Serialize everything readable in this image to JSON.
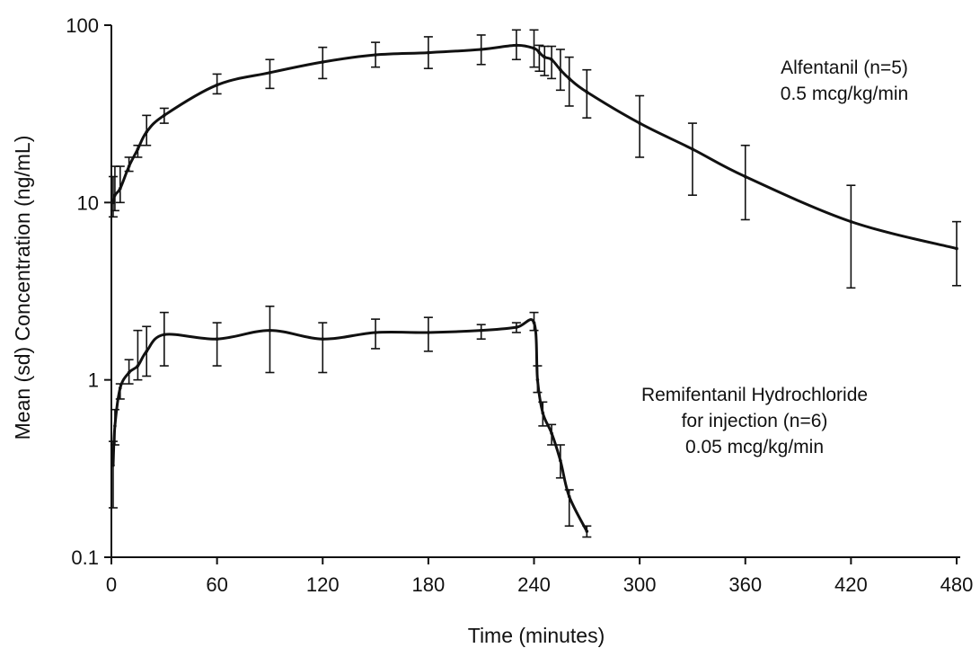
{
  "chart_data": {
    "type": "line",
    "xlabel": "Time (minutes)",
    "ylabel": "Mean (sd) Concentration (ng/mL)",
    "y_scale": "log",
    "xlim": [
      0,
      480
    ],
    "ylim": [
      0.1,
      100
    ],
    "x_ticks": [
      0,
      60,
      120,
      180,
      240,
      300,
      360,
      420,
      480
    ],
    "x_tick_labels": [
      "0",
      "60",
      "120",
      "180",
      "240",
      "300",
      "360",
      "420",
      "480"
    ],
    "y_ticks": [
      0.1,
      1,
      10,
      100
    ],
    "y_tick_labels": [
      "0.1",
      "1",
      "10",
      "100"
    ],
    "grid": false,
    "line_color": "#111111",
    "series": [
      {
        "label_lines": [
          "Alfentanil (n=5)",
          "0.5 mcg/kg/min"
        ],
        "points": [
          {
            "x": 1,
            "y": 10,
            "lo": 8.3,
            "hi": 14
          },
          {
            "x": 2,
            "y": 11,
            "lo": 9,
            "hi": 16
          },
          {
            "x": 5,
            "y": 12,
            "lo": 10,
            "hi": 16
          },
          {
            "x": 10,
            "y": 16,
            "lo": 15,
            "hi": 18
          },
          {
            "x": 15,
            "y": 20,
            "lo": 18,
            "hi": 21
          },
          {
            "x": 20,
            "y": 25,
            "lo": 21,
            "hi": 31
          },
          {
            "x": 30,
            "y": 31,
            "lo": 28,
            "hi": 34
          },
          {
            "x": 60,
            "y": 46,
            "lo": 41,
            "hi": 53
          },
          {
            "x": 90,
            "y": 54,
            "lo": 44,
            "hi": 64
          },
          {
            "x": 120,
            "y": 62,
            "lo": 50,
            "hi": 75
          },
          {
            "x": 150,
            "y": 68,
            "lo": 58,
            "hi": 80
          },
          {
            "x": 180,
            "y": 70,
            "lo": 57,
            "hi": 86
          },
          {
            "x": 210,
            "y": 73,
            "lo": 60,
            "hi": 88
          },
          {
            "x": 230,
            "y": 77,
            "lo": 64,
            "hi": 94
          },
          {
            "x": 240,
            "y": 74,
            "lo": 58,
            "hi": 94
          },
          {
            "x": 243,
            "y": 70,
            "lo": 55,
            "hi": 77
          },
          {
            "x": 246,
            "y": 66,
            "lo": 52,
            "hi": 76
          },
          {
            "x": 250,
            "y": 64,
            "lo": 50,
            "hi": 76
          },
          {
            "x": 255,
            "y": 56,
            "lo": 43,
            "hi": 73
          },
          {
            "x": 260,
            "y": 50,
            "lo": 35,
            "hi": 66
          },
          {
            "x": 270,
            "y": 42,
            "lo": 30,
            "hi": 56
          },
          {
            "x": 300,
            "y": 28,
            "lo": 18,
            "hi": 40
          },
          {
            "x": 330,
            "y": 20,
            "lo": 11,
            "hi": 28
          },
          {
            "x": 360,
            "y": 14,
            "lo": 8,
            "hi": 21
          },
          {
            "x": 420,
            "y": 7.8,
            "lo": 3.3,
            "hi": 12.5
          },
          {
            "x": 480,
            "y": 5.5,
            "lo": 3.4,
            "hi": 7.8
          }
        ]
      },
      {
        "label_lines": [
          "Remifentanil Hydrochloride",
          "for injection (n=6)",
          "0.05 mcg/kg/min"
        ],
        "points": [
          {
            "x": 1,
            "y": 0.33,
            "lo": 0.19,
            "hi": 0.45
          },
          {
            "x": 2,
            "y": 0.55,
            "lo": 0.43,
            "hi": 0.68
          },
          {
            "x": 5,
            "y": 0.9,
            "lo": 0.78,
            "hi": 0.95
          },
          {
            "x": 10,
            "y": 1.1,
            "lo": 0.95,
            "hi": 1.3
          },
          {
            "x": 15,
            "y": 1.2,
            "lo": 1.0,
            "hi": 1.9
          },
          {
            "x": 20,
            "y": 1.45,
            "lo": 1.05,
            "hi": 2.0
          },
          {
            "x": 30,
            "y": 1.8,
            "lo": 1.2,
            "hi": 2.4
          },
          {
            "x": 60,
            "y": 1.7,
            "lo": 1.2,
            "hi": 2.1
          },
          {
            "x": 90,
            "y": 1.9,
            "lo": 1.1,
            "hi": 2.6
          },
          {
            "x": 120,
            "y": 1.7,
            "lo": 1.1,
            "hi": 2.1
          },
          {
            "x": 150,
            "y": 1.85,
            "lo": 1.5,
            "hi": 2.2
          },
          {
            "x": 180,
            "y": 1.85,
            "lo": 1.45,
            "hi": 2.25
          },
          {
            "x": 210,
            "y": 1.9,
            "lo": 1.7,
            "hi": 2.05
          },
          {
            "x": 230,
            "y": 1.98,
            "lo": 1.85,
            "hi": 2.1
          },
          {
            "x": 240,
            "y": 2.1,
            "lo": 1.9,
            "hi": 2.4
          },
          {
            "x": 242,
            "y": 1.0,
            "lo": 0.85,
            "hi": 1.2
          },
          {
            "x": 245,
            "y": 0.65,
            "lo": 0.55,
            "hi": 0.75
          },
          {
            "x": 250,
            "y": 0.5,
            "lo": 0.43,
            "hi": 0.56
          },
          {
            "x": 255,
            "y": 0.35,
            "lo": 0.28,
            "hi": 0.43
          },
          {
            "x": 260,
            "y": 0.22,
            "lo": 0.15,
            "hi": 0.24
          },
          {
            "x": 270,
            "y": 0.14,
            "lo": 0.13,
            "hi": 0.15
          }
        ]
      }
    ]
  }
}
